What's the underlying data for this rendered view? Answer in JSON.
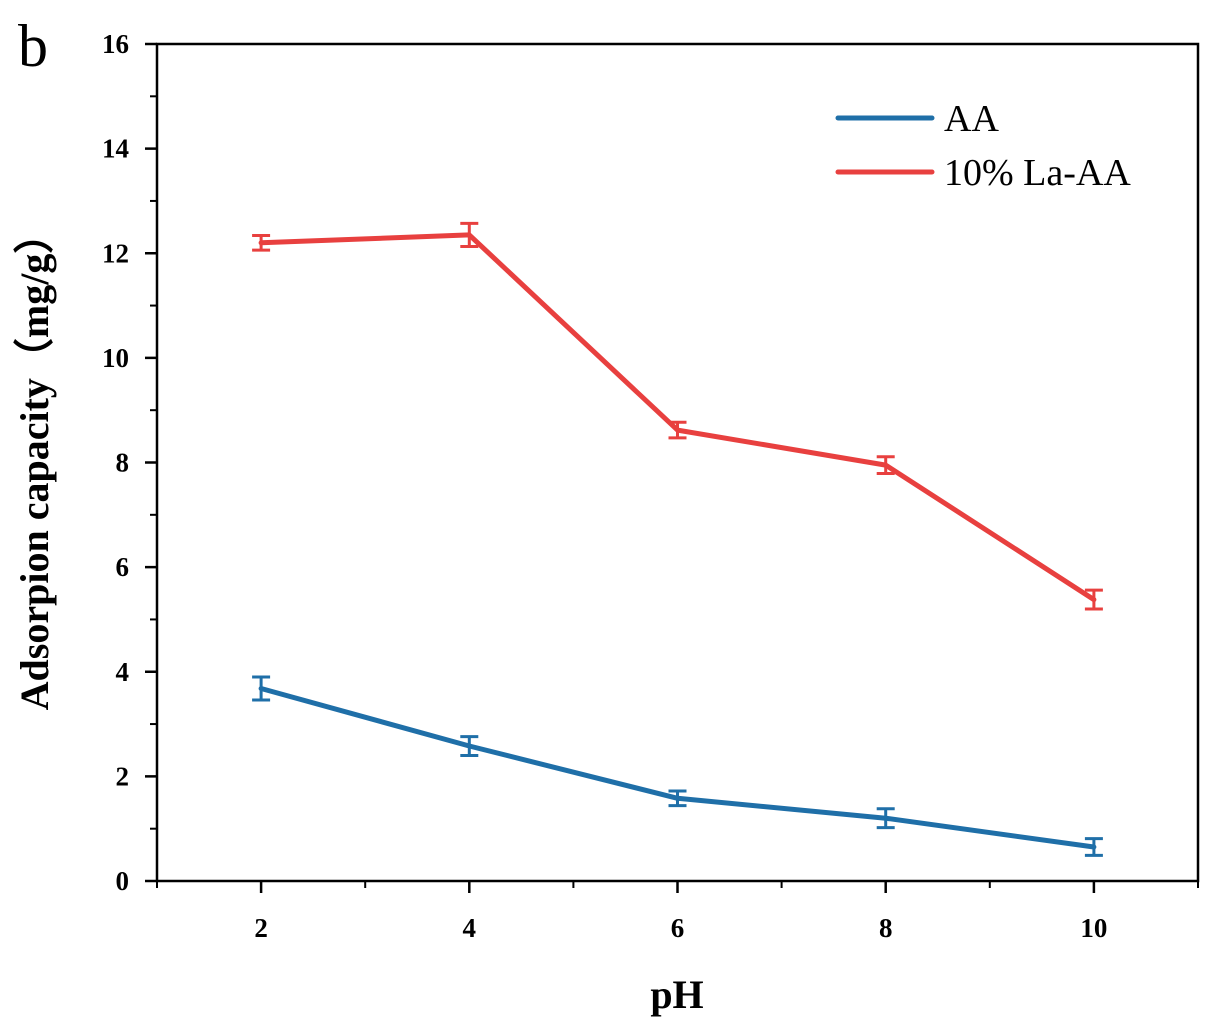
{
  "panel_label": "b",
  "chart_data": {
    "type": "line",
    "title": "",
    "xlabel": "pH",
    "ylabel": "Adsorpion capacity（mg/g）",
    "x": [
      2,
      4,
      6,
      8,
      10
    ],
    "xlim": [
      1,
      11
    ],
    "ylim": [
      0,
      16
    ],
    "xticks": [
      "2",
      "4",
      "6",
      "8",
      "10"
    ],
    "yticks": [
      "0",
      "2",
      "4",
      "6",
      "8",
      "10",
      "12",
      "14",
      "16"
    ],
    "grid": false,
    "legend_position": "top-right",
    "series": [
      {
        "name": "AA",
        "color": "#1f6fa8",
        "values": [
          3.68,
          2.58,
          1.58,
          1.2,
          0.65
        ],
        "errors": [
          0.22,
          0.18,
          0.14,
          0.18,
          0.16
        ]
      },
      {
        "name": "10% La-AA",
        "color": "#e8403f",
        "values": [
          12.2,
          12.35,
          8.62,
          7.95,
          5.38
        ],
        "errors": [
          0.14,
          0.22,
          0.15,
          0.16,
          0.18
        ]
      }
    ]
  }
}
